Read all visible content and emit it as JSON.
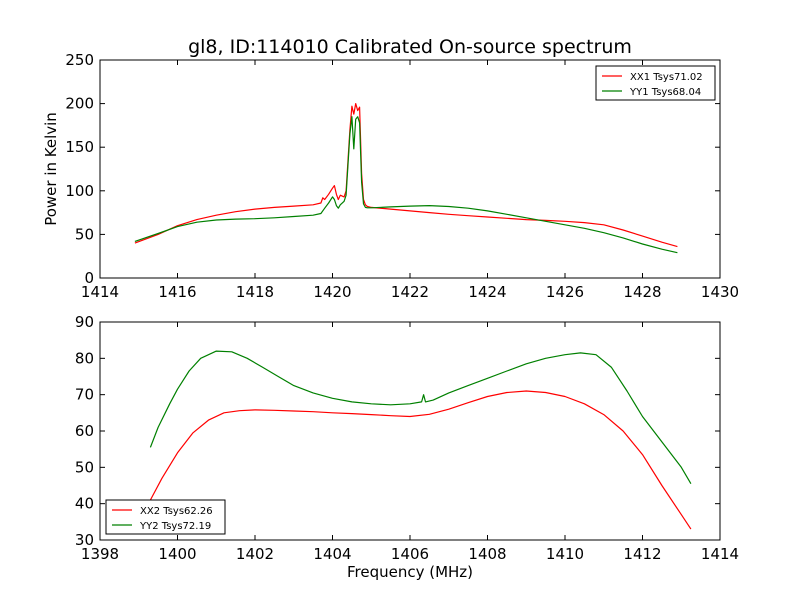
{
  "figure": {
    "title": "gl8, ID:114010 Calibrated On-source spectrum"
  },
  "chart_data": [
    {
      "type": "line",
      "title": "gl8, ID:114010 Calibrated On-source spectrum",
      "xlabel": "",
      "ylabel": "Power in Kelvin",
      "xlim": [
        1414,
        1430
      ],
      "ylim": [
        0,
        250
      ],
      "xticks": [
        1414,
        1416,
        1418,
        1420,
        1422,
        1424,
        1426,
        1428,
        1430
      ],
      "yticks": [
        0,
        50,
        100,
        150,
        200,
        250
      ],
      "grid": false,
      "legend_position": "top-right",
      "series": [
        {
          "name": "XX1 Tsys71.02",
          "color": "#ff0000",
          "x": [
            1414.9,
            1415.5,
            1416.0,
            1416.5,
            1417.0,
            1417.5,
            1418.0,
            1418.5,
            1419.0,
            1419.5,
            1419.7,
            1419.75,
            1419.8,
            1419.9,
            1420.0,
            1420.05,
            1420.1,
            1420.15,
            1420.2,
            1420.3,
            1420.35,
            1420.4,
            1420.45,
            1420.5,
            1420.55,
            1420.6,
            1420.65,
            1420.7,
            1420.75,
            1420.8,
            1420.85,
            1420.9,
            1421.0,
            1421.5,
            1422.0,
            1422.5,
            1423.0,
            1423.5,
            1424.0,
            1424.5,
            1425.0,
            1425.5,
            1426.0,
            1426.5,
            1427.0,
            1427.5,
            1428.0,
            1428.5,
            1428.9
          ],
          "y": [
            40,
            50,
            60,
            67,
            72,
            76,
            79,
            81,
            82.5,
            84,
            86,
            92,
            90,
            96,
            103,
            106,
            96,
            90,
            95,
            93,
            100,
            135,
            170,
            197,
            188,
            200,
            192,
            196,
            120,
            90,
            84,
            82,
            81,
            79,
            77,
            75,
            73,
            71.5,
            70,
            68.5,
            67,
            66,
            65,
            63.5,
            61,
            55,
            48,
            41,
            36
          ]
        },
        {
          "name": "YY1 Tsys68.04",
          "color": "#008000",
          "x": [
            1414.9,
            1415.5,
            1416.0,
            1416.5,
            1417.0,
            1417.5,
            1418.0,
            1418.5,
            1419.0,
            1419.5,
            1419.7,
            1419.8,
            1419.9,
            1420.0,
            1420.05,
            1420.1,
            1420.15,
            1420.2,
            1420.3,
            1420.35,
            1420.4,
            1420.45,
            1420.5,
            1420.55,
            1420.6,
            1420.65,
            1420.7,
            1420.75,
            1420.8,
            1420.85,
            1420.9,
            1421.0,
            1421.5,
            1422.0,
            1422.5,
            1423.0,
            1423.5,
            1424.0,
            1424.5,
            1425.0,
            1425.5,
            1426.0,
            1426.5,
            1427.0,
            1427.5,
            1428.0,
            1428.5,
            1428.9
          ],
          "y": [
            42,
            51,
            59,
            64,
            66.5,
            67.5,
            68,
            69,
            70.5,
            72,
            74,
            80,
            86,
            93,
            90,
            83,
            80,
            84,
            88,
            95,
            130,
            165,
            185,
            148,
            182,
            185,
            178,
            110,
            85,
            81,
            80.5,
            80.5,
            81.5,
            82.5,
            83,
            82,
            80,
            77,
            73,
            69,
            65,
            61,
            57,
            52,
            46,
            39,
            33,
            29
          ]
        }
      ]
    },
    {
      "type": "line",
      "title": "",
      "xlabel": "Frequency (MHz)",
      "ylabel": "",
      "xlim": [
        1398,
        1414
      ],
      "ylim": [
        30,
        90
      ],
      "xticks": [
        1398,
        1400,
        1402,
        1404,
        1406,
        1408,
        1410,
        1412,
        1414
      ],
      "yticks": [
        30,
        40,
        50,
        60,
        70,
        80,
        90
      ],
      "grid": false,
      "legend_position": "bottom-left",
      "series": [
        {
          "name": "XX2 Tsys62.26",
          "color": "#ff0000",
          "x": [
            1399.3,
            1399.6,
            1400.0,
            1400.4,
            1400.8,
            1401.2,
            1401.6,
            1402.0,
            1402.5,
            1403.0,
            1403.5,
            1404.0,
            1404.5,
            1405.0,
            1405.5,
            1406.0,
            1406.5,
            1407.0,
            1407.5,
            1408.0,
            1408.5,
            1409.0,
            1409.5,
            1410.0,
            1410.5,
            1411.0,
            1411.5,
            1412.0,
            1412.5,
            1413.0,
            1413.25
          ],
          "y": [
            41,
            47,
            54,
            59.5,
            63,
            65,
            65.6,
            65.8,
            65.7,
            65.5,
            65.3,
            65,
            64.8,
            64.5,
            64.2,
            64,
            64.6,
            66,
            67.8,
            69.5,
            70.6,
            71,
            70.6,
            69.5,
            67.5,
            64.5,
            60,
            53.5,
            45,
            37,
            33
          ]
        },
        {
          "name": "YY2 Tsys72.19",
          "color": "#008000",
          "x": [
            1399.3,
            1399.5,
            1399.8,
            1400.0,
            1400.3,
            1400.6,
            1401.0,
            1401.4,
            1401.8,
            1402.2,
            1402.6,
            1403.0,
            1403.5,
            1404.0,
            1404.5,
            1405.0,
            1405.5,
            1406.0,
            1406.3,
            1406.35,
            1406.4,
            1406.6,
            1407.0,
            1407.5,
            1408.0,
            1408.5,
            1409.0,
            1409.5,
            1410.0,
            1410.4,
            1410.8,
            1411.2,
            1411.6,
            1412.0,
            1412.5,
            1413.0,
            1413.25
          ],
          "y": [
            55.5,
            61,
            67.5,
            71.5,
            76.5,
            80,
            82,
            81.8,
            80,
            77.5,
            75,
            72.5,
            70.5,
            69,
            68,
            67.5,
            67.2,
            67.5,
            68,
            70,
            68,
            68.5,
            70.5,
            72.5,
            74.5,
            76.5,
            78.5,
            80,
            81,
            81.5,
            81,
            77.5,
            71,
            64,
            57,
            50,
            45.5
          ]
        }
      ]
    }
  ]
}
